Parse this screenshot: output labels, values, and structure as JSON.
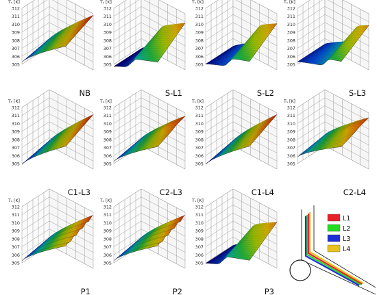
{
  "figure": {
    "z_axis_label": "Tₛ [K]",
    "z_ticks": [
      305,
      306,
      307,
      308,
      309,
      310,
      311,
      312
    ]
  },
  "chart_data": [
    {
      "type": "surface",
      "label": "NB",
      "zlabel": "Tₛ [K]",
      "zlim": [
        305,
        312
      ],
      "ticks": [
        305,
        306,
        307,
        308,
        309,
        310,
        311,
        312
      ],
      "z_min": 305.0,
      "z_max": 311.8,
      "shape": "smooth"
    },
    {
      "type": "surface",
      "label": "S-L1",
      "zlabel": "Tₛ [K]",
      "zlim": [
        305,
        312
      ],
      "ticks": [
        305,
        306,
        307,
        308,
        309,
        310,
        311,
        312
      ],
      "z_min": 304.6,
      "z_max": 311.6,
      "shape": "step-low"
    },
    {
      "type": "surface",
      "label": "S-L2",
      "zlabel": "Tₛ [K]",
      "zlim": [
        305,
        312
      ],
      "ticks": [
        305,
        306,
        307,
        308,
        309,
        310,
        311,
        312
      ],
      "z_min": 304.9,
      "z_max": 311.5,
      "shape": "step-mid"
    },
    {
      "type": "surface",
      "label": "S-L3",
      "zlabel": "Tₛ [K]",
      "zlim": [
        305,
        312
      ],
      "ticks": [
        305,
        306,
        307,
        308,
        309,
        310,
        311,
        312
      ],
      "z_min": 305.2,
      "z_max": 311.2,
      "shape": "step-high"
    },
    {
      "type": "surface",
      "label": "C1-L3",
      "zlabel": "Tₛ [K]",
      "zlim": [
        305,
        312
      ],
      "ticks": [
        305,
        306,
        307,
        308,
        309,
        310,
        311,
        312
      ],
      "z_min": 304.6,
      "z_max": 311.8,
      "shape": "smooth"
    },
    {
      "type": "surface",
      "label": "C2-L3",
      "zlabel": "Tₛ [K]",
      "zlim": [
        305,
        312
      ],
      "ticks": [
        305,
        306,
        307,
        308,
        309,
        310,
        311,
        312
      ],
      "z_min": 305.0,
      "z_max": 311.6,
      "shape": "bump"
    },
    {
      "type": "surface",
      "label": "C1-L4",
      "zlabel": "Tₛ [K]",
      "zlim": [
        305,
        312
      ],
      "ticks": [
        305,
        306,
        307,
        308,
        309,
        310,
        311,
        312
      ],
      "z_min": 304.6,
      "z_max": 311.8,
      "shape": "smooth"
    },
    {
      "type": "surface",
      "label": "C2-L4",
      "zlabel": "Tₛ [K]",
      "zlim": [
        305,
        312
      ],
      "ticks": [
        305,
        306,
        307,
        308,
        309,
        310,
        311,
        312
      ],
      "z_min": 305.6,
      "z_max": 311.4,
      "shape": "bump"
    },
    {
      "type": "surface",
      "label": "P1",
      "zlabel": "Tₛ [K]",
      "zlim": [
        305,
        312
      ],
      "ticks": [
        305,
        306,
        307,
        308,
        309,
        310,
        311,
        312
      ],
      "z_min": 305.0,
      "z_max": 311.6,
      "shape": "ripple"
    },
    {
      "type": "surface",
      "label": "P2",
      "zlabel": "Tₛ [K]",
      "zlim": [
        305,
        312
      ],
      "ticks": [
        305,
        306,
        307,
        308,
        309,
        310,
        311,
        312
      ],
      "z_min": 305.0,
      "z_max": 311.6,
      "shape": "ripple"
    },
    {
      "type": "surface",
      "label": "P3",
      "zlabel": "Tₛ [K]",
      "zlim": [
        305,
        312
      ],
      "ticks": [
        305,
        306,
        307,
        308,
        309,
        310,
        311,
        312
      ],
      "z_min": 304.8,
      "z_max": 311.5,
      "shape": "step-low"
    }
  ],
  "legend": {
    "items": [
      {
        "label": "L1",
        "color": "#e8202a"
      },
      {
        "label": "L2",
        "color": "#22dd22"
      },
      {
        "label": "L3",
        "color": "#1c2fd6"
      },
      {
        "label": "L4",
        "color": "#e8c21c"
      }
    ]
  },
  "colormap": [
    "#00008f",
    "#0050ff",
    "#00c8c8",
    "#22cc44",
    "#b8e000",
    "#ffd000",
    "#ff7000",
    "#e00000"
  ]
}
